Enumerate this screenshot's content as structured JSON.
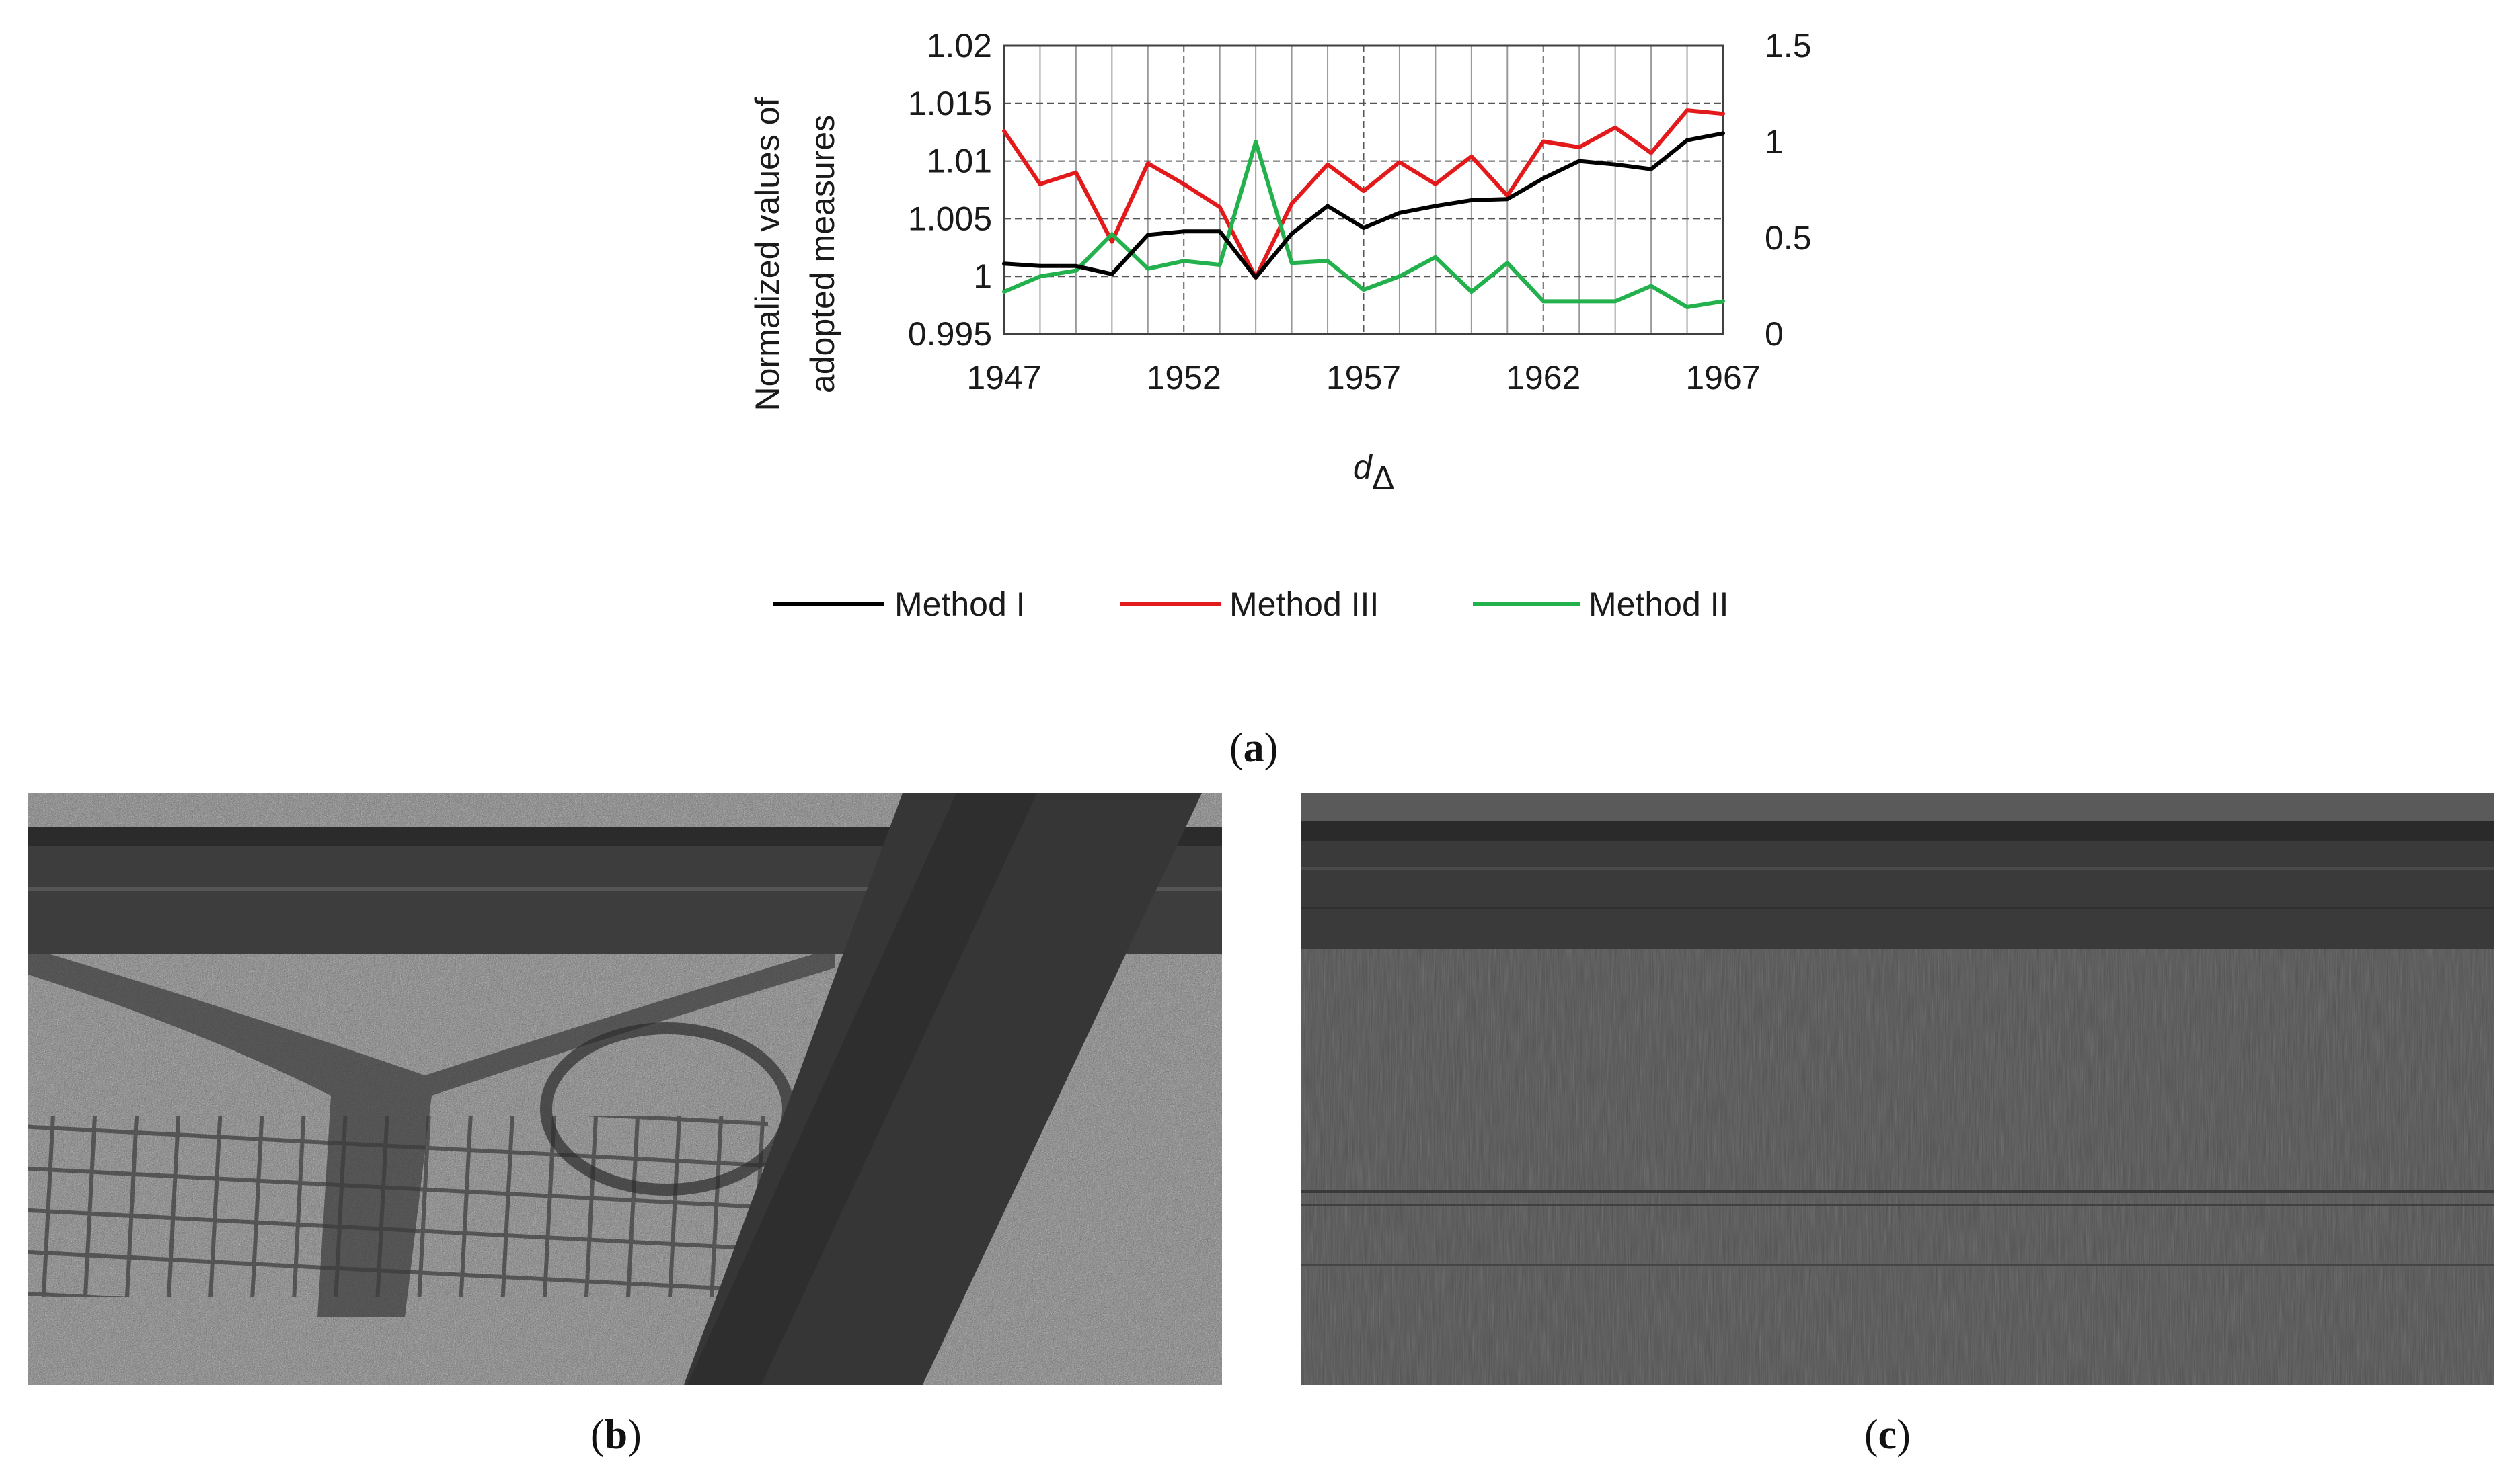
{
  "chart_data": {
    "type": "line",
    "ylabel_lines": [
      "Normalized values of",
      "adopted measures"
    ],
    "xlabel_main": "d",
    "xlabel_sub": "Δ",
    "x": [
      1947,
      1948,
      1949,
      1950,
      1951,
      1952,
      1953,
      1954,
      1955,
      1956,
      1957,
      1958,
      1959,
      1960,
      1961,
      1962,
      1963,
      1964,
      1965,
      1966,
      1967
    ],
    "x_ticks": [
      "1947",
      "1952",
      "1957",
      "1962",
      "1967"
    ],
    "y_left_ticks": [
      "1.02",
      "1.015",
      "1.01",
      "1.005",
      "1",
      "0.995"
    ],
    "y_right_ticks": [
      "1.5",
      "1",
      "0.5",
      "0"
    ],
    "ylim_left": [
      0.995,
      1.02
    ],
    "ylim_right": [
      0,
      1.5
    ],
    "series": [
      {
        "name": "Method I",
        "axis": "left",
        "color": "#000000",
        "values": [
          1.0011,
          1.0009,
          1.0009,
          1.0002,
          1.0036,
          1.0039,
          1.0039,
          0.9999,
          1.0037,
          1.0061,
          1.0042,
          1.0055,
          1.0061,
          1.0066,
          1.0067,
          1.0085,
          1.01,
          1.0097,
          1.0093,
          1.0118,
          1.0124
        ]
      },
      {
        "name": "Method III",
        "axis": "left",
        "color": "#e31a1c",
        "values": [
          1.0126,
          1.008,
          1.009,
          1.003,
          1.0098,
          1.008,
          1.006,
          0.9999,
          1.0063,
          1.0097,
          1.0074,
          1.0099,
          1.008,
          1.0104,
          1.007,
          1.0117,
          1.0112,
          1.0129,
          1.0107,
          1.0144,
          1.0141
        ]
      },
      {
        "name": "Method II",
        "axis": "right",
        "color": "#22b14c",
        "values": [
          0.22,
          0.3,
          0.33,
          0.52,
          0.34,
          0.38,
          0.36,
          1.0,
          0.37,
          0.38,
          0.23,
          0.3,
          0.4,
          0.22,
          0.37,
          0.17,
          0.17,
          0.17,
          0.25,
          0.14,
          0.17
        ]
      }
    ],
    "legend_position": "bottom-center",
    "grid": true
  },
  "captions": {
    "a": "a",
    "b": "b",
    "c": "c"
  }
}
